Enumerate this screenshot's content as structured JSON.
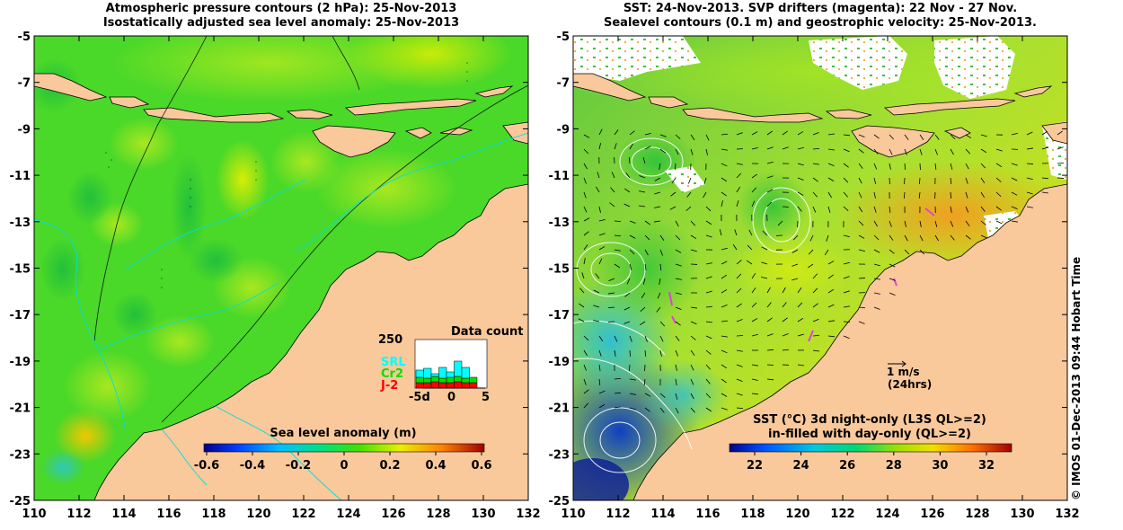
{
  "left_panel": {
    "title_line1": "Atmospheric pressure contours (2 hPa): 25-Nov-2013",
    "title_line2": "Isostatically adjusted sea level anomaly: 25-Nov-2013",
    "x_ticks": [
      "110",
      "112",
      "114",
      "116",
      "118",
      "120",
      "122",
      "124",
      "126",
      "128",
      "130",
      "132"
    ],
    "y_ticks": [
      "-5",
      "-7",
      "-9",
      "-11",
      "-13",
      "-15",
      "-17",
      "-19",
      "-21",
      "-23",
      "-25"
    ],
    "colorbar": {
      "title": "Sea level anomaly (m)",
      "ticks": [
        "-0.6",
        "-0.4",
        "-0.2",
        "0",
        "0.2",
        "0.4",
        "0.6"
      ]
    },
    "data_count": {
      "title": "Data count",
      "max_label": "250",
      "series_labels": [
        "SRL",
        "Cr2",
        "J-2"
      ],
      "series_colors": [
        "#00ffff",
        "#00e000",
        "#ff0000"
      ],
      "x_ticks": [
        "-5d",
        "0",
        "5"
      ],
      "bars": [
        {
          "j2": 30,
          "cr2": 30,
          "srl": 40
        },
        {
          "j2": 30,
          "cr2": 25,
          "srl": 55
        },
        {
          "j2": 35,
          "cr2": 30,
          "srl": 15
        },
        {
          "j2": 30,
          "cr2": 25,
          "srl": 60
        },
        {
          "j2": 30,
          "cr2": 30,
          "srl": 30
        },
        {
          "j2": 35,
          "cr2": 30,
          "srl": 85
        },
        {
          "j2": 30,
          "cr2": 25,
          "srl": 60
        },
        {
          "j2": 30,
          "cr2": 30,
          "srl": 0
        }
      ]
    }
  },
  "right_panel": {
    "title_line1": "SST: 24-Nov-2013. SVP drifters (magenta): 22 Nov - 27 Nov.",
    "title_line2": "Sealevel contours (0.1 m) and geostrophic velocity: 25-Nov-2013.",
    "x_ticks": [
      "110",
      "112",
      "114",
      "116",
      "118",
      "120",
      "122",
      "124",
      "126",
      "128",
      "130",
      "132"
    ],
    "y_ticks": [
      "-5",
      "-7",
      "-9",
      "-11",
      "-13",
      "-15",
      "-17",
      "-19",
      "-21",
      "-23",
      "-25"
    ],
    "velocity_scale": {
      "speed": "1 m/s",
      "duration": "(24hrs)"
    },
    "colorbar": {
      "title_line1": "SST (°C)  3d night-only (L3S QL>=2)",
      "title_line2": "in-filled with day-only (QL>=2)",
      "ticks": [
        "22",
        "24",
        "26",
        "28",
        "30",
        "32"
      ]
    }
  },
  "credit": "© IMOS 01-Dec-2013 09:44 Hobart Time",
  "colors": {
    "land": "#f9c89b",
    "sla_base": "#4ad829",
    "coast": "#000000",
    "bathy_contour": "#00e0e0",
    "drifter": "#e040e0"
  }
}
